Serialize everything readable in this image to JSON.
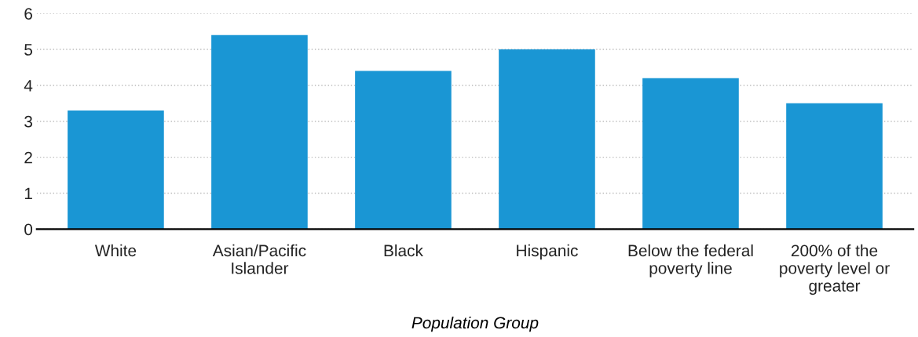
{
  "chart_data": {
    "type": "bar",
    "xlabel": "Population Group",
    "categories": [
      "White",
      "Asian/Pacific\nIslander",
      "Black",
      "Hispanic",
      "Below the federal\npoverty line",
      "200% of the\npoverty level or\ngreater"
    ],
    "values": [
      3.3,
      5.4,
      4.4,
      5.0,
      4.2,
      3.5
    ],
    "color": "#1a96d4",
    "ylim": [
      0,
      6
    ],
    "yticks": [
      0,
      1,
      2,
      3,
      4,
      5,
      6
    ],
    "grid": "y"
  }
}
